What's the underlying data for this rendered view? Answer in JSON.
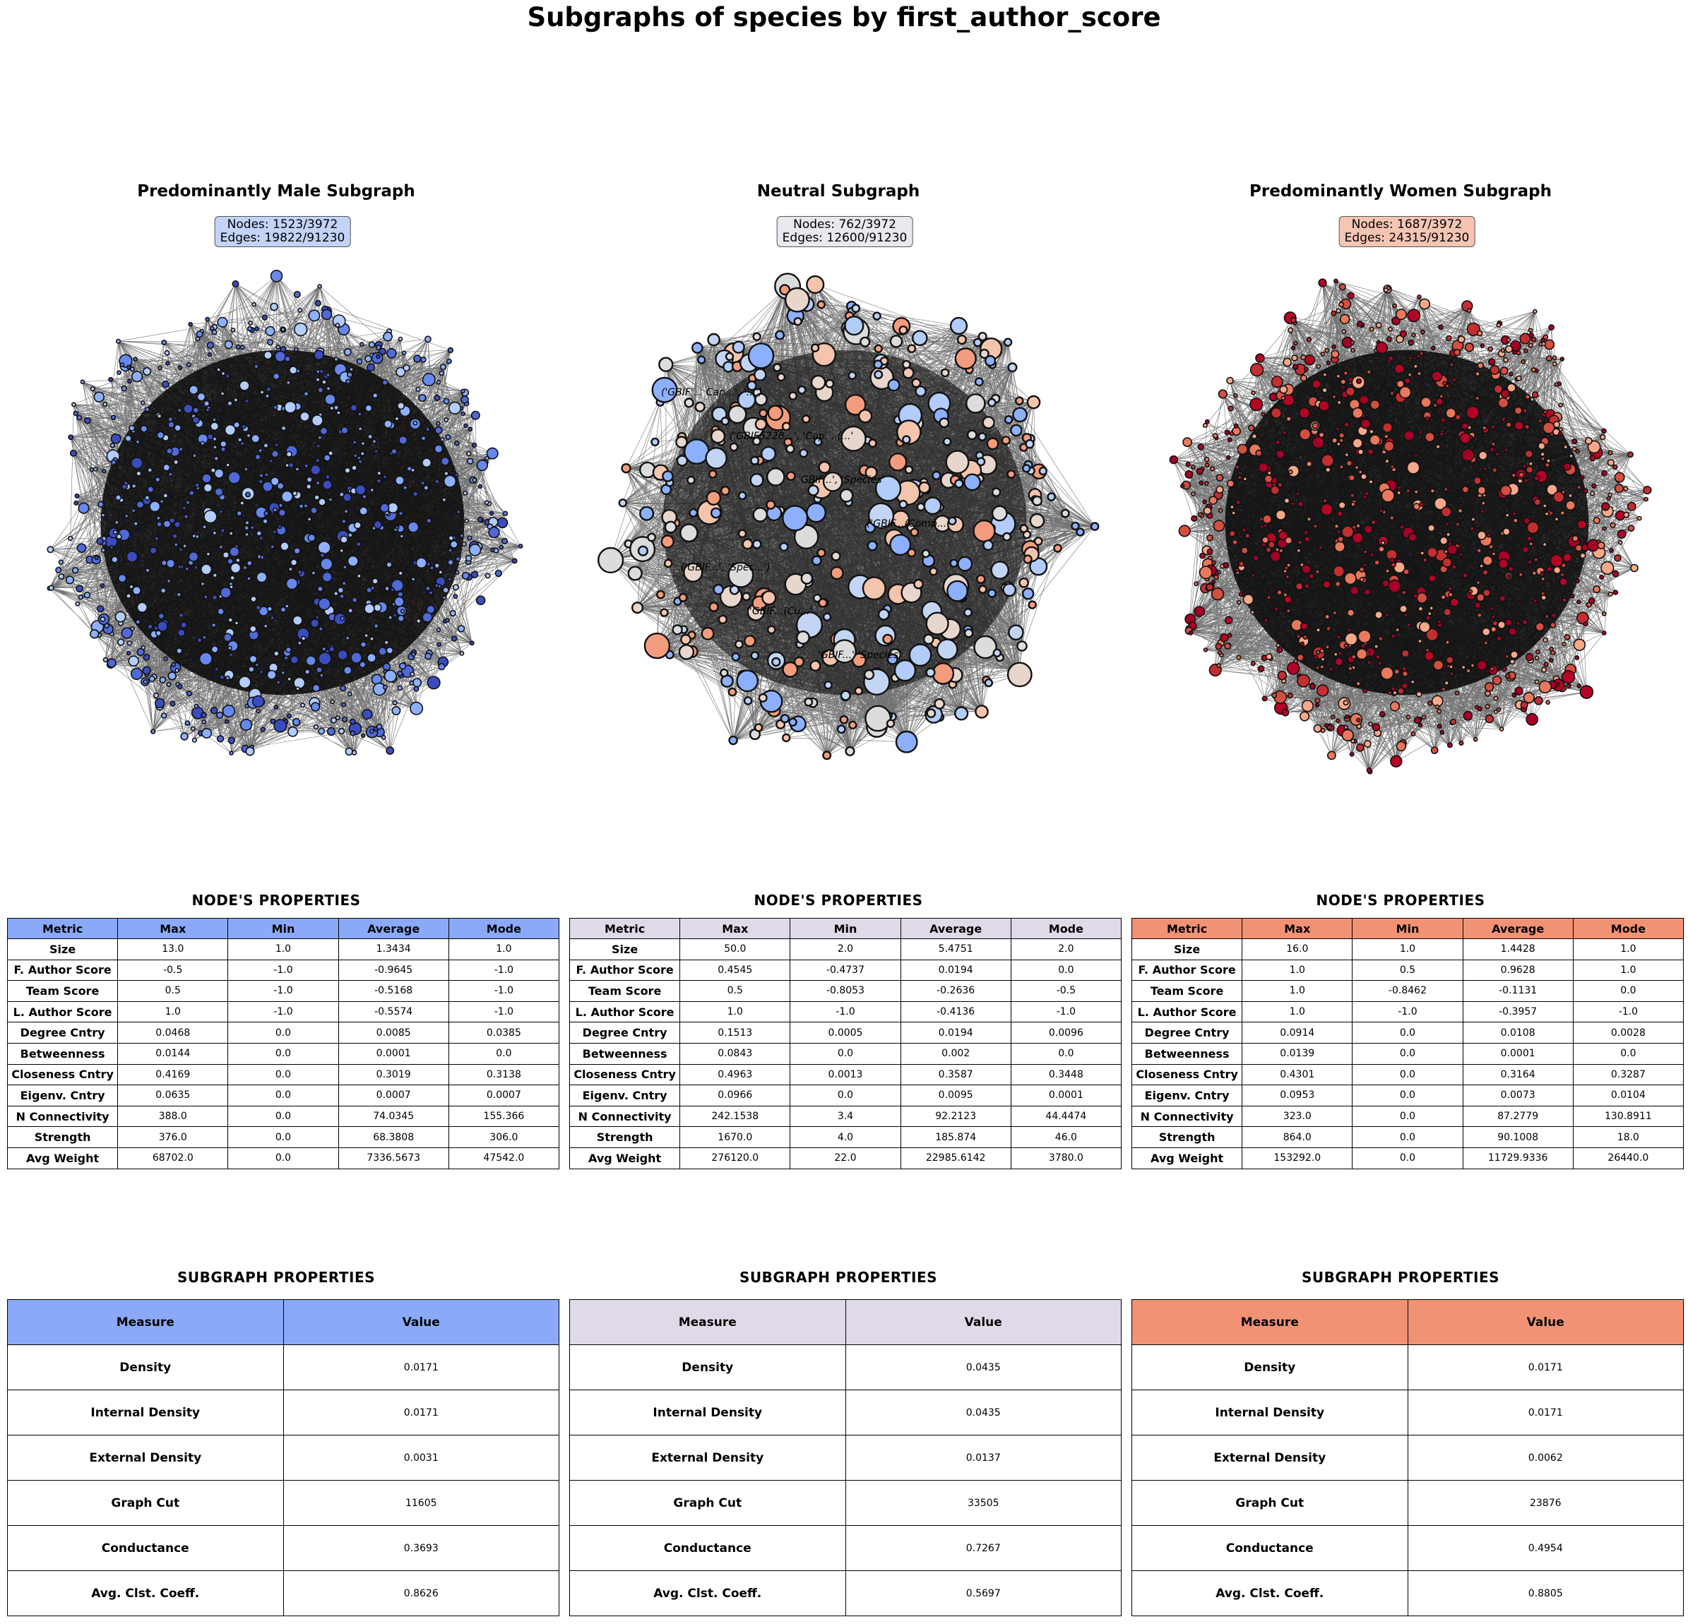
{
  "title": "Subgraphs of species by first_author_score",
  "node_table_title": "NODE'S  PROPERTIES",
  "subgraph_table_title": "SUBGRAPH  PROPERTIES",
  "node_headers": [
    "Metric",
    "Max",
    "Min",
    "Average",
    "Mode"
  ],
  "subgraph_headers": [
    "Measure",
    "Value"
  ],
  "node_metrics": [
    "Size",
    "F. Author Score",
    "Team Score",
    "L. Author Score",
    "Degree Cntry",
    "Betweenness",
    "Closeness Cntry",
    "Eigenv. Cntry",
    "N Connectivity",
    "Strength",
    "Avg Weight"
  ],
  "subgraph_measures": [
    "Density",
    "Internal Density",
    "External Density",
    "Graph Cut",
    "Conductance",
    "Avg. Clst. Coeff."
  ],
  "panels": [
    {
      "title": "Predominantly Male Subgraph",
      "nodes_text": "Nodes: 1523/3972",
      "edges_text": "Edges: 19822/91230",
      "header_color": "#8aa9f8",
      "box_color": "#c3d3f7",
      "node_rows": [
        [
          "13.0",
          "1.0",
          "1.3434",
          "1.0"
        ],
        [
          "-0.5",
          "-1.0",
          "-0.9645",
          "-1.0"
        ],
        [
          "0.5",
          "-1.0",
          "-0.5168",
          "-1.0"
        ],
        [
          "1.0",
          "-1.0",
          "-0.5574",
          "-1.0"
        ],
        [
          "0.0468",
          "0.0",
          "0.0085",
          "0.0385"
        ],
        [
          "0.0144",
          "0.0",
          "0.0001",
          "0.0"
        ],
        [
          "0.4169",
          "0.0",
          "0.3019",
          "0.3138"
        ],
        [
          "0.0635",
          "0.0",
          "0.0007",
          "0.0007"
        ],
        [
          "388.0",
          "0.0",
          "74.0345",
          "155.366"
        ],
        [
          "376.0",
          "0.0",
          "68.3808",
          "306.0"
        ],
        [
          "68702.0",
          "0.0",
          "7336.5673",
          "47542.0"
        ]
      ],
      "subgraph_values": [
        "0.0171",
        "0.0171",
        "0.0031",
        "11605",
        "0.3693",
        "0.8626"
      ],
      "network": {
        "node_count": 900,
        "edge_count": 2400,
        "node_colors": [
          "#3b4cc0",
          "#4f69d9",
          "#6788ee",
          "#8db0fe",
          "#b2ccfb"
        ],
        "min_radius": 2.5,
        "max_radius": 9,
        "halo": false
      },
      "labels": []
    },
    {
      "title": "Neutral Subgraph",
      "nodes_text": "Nodes: 762/3972",
      "edges_text": "Edges: 12600/91230",
      "header_color": "#e0d9e7",
      "box_color": "#eae7ef",
      "node_rows": [
        [
          "50.0",
          "2.0",
          "5.4751",
          "2.0"
        ],
        [
          "0.4545",
          "-0.4737",
          "0.0194",
          "0.0"
        ],
        [
          "0.5",
          "-0.8053",
          "-0.2636",
          "-0.5"
        ],
        [
          "1.0",
          "-1.0",
          "-0.4136",
          "-1.0"
        ],
        [
          "0.1513",
          "0.0005",
          "0.0194",
          "0.0096"
        ],
        [
          "0.0843",
          "0.0",
          "0.002",
          "0.0"
        ],
        [
          "0.4963",
          "0.0013",
          "0.3587",
          "0.3448"
        ],
        [
          "0.0966",
          "0.0",
          "0.0095",
          "0.0001"
        ],
        [
          "242.1538",
          "3.4",
          "92.2123",
          "44.4474"
        ],
        [
          "1670.0",
          "4.0",
          "185.874",
          "46.0"
        ],
        [
          "276120.0",
          "22.0",
          "22985.6142",
          "3780.0"
        ]
      ],
      "subgraph_values": [
        "0.0435",
        "0.0435",
        "0.0137",
        "33505",
        "0.7267",
        "0.5697"
      ],
      "network": {
        "node_count": 430,
        "edge_count": 2600,
        "node_colors": [
          "#8db0fe",
          "#b2ccfb",
          "#dddcdc",
          "#f5c4ac",
          "#f39c7d",
          "#c3d5f4",
          "#e8d6cc"
        ],
        "min_radius": 5,
        "max_radius": 18,
        "halo": true
      },
      "labels": [
        "('GBIF'... Cap...', '...')",
        "('GBIF5228...', 'Cap... (...'",
        "'GBIF...', 'Species'",
        "('GBIF...(Comp...",
        "('GBIF...', 'Spec...')",
        "'GBIF...(Cu...'",
        "'GBIF...' 'Species'"
      ]
    },
    {
      "title": "Predominantly Women Subgraph",
      "nodes_text": "Nodes: 1687/3972",
      "edges_text": "Edges: 24315/91230",
      "header_color": "#f29274",
      "box_color": "#f5c4b3",
      "node_rows": [
        [
          "16.0",
          "1.0",
          "1.4428",
          "1.0"
        ],
        [
          "1.0",
          "0.5",
          "0.9628",
          "1.0"
        ],
        [
          "1.0",
          "-0.8462",
          "-0.1131",
          "0.0"
        ],
        [
          "1.0",
          "-1.0",
          "-0.3957",
          "-1.0"
        ],
        [
          "0.0914",
          "0.0",
          "0.0108",
          "0.0028"
        ],
        [
          "0.0139",
          "0.0",
          "0.0001",
          "0.0"
        ],
        [
          "0.4301",
          "0.0",
          "0.3164",
          "0.3287"
        ],
        [
          "0.0953",
          "0.0",
          "0.0073",
          "0.0104"
        ],
        [
          "323.0",
          "0.0",
          "87.2779",
          "130.8911"
        ],
        [
          "864.0",
          "0.0",
          "90.1008",
          "18.0"
        ],
        [
          "153292.0",
          "0.0",
          "11729.9336",
          "26440.0"
        ]
      ],
      "subgraph_values": [
        "0.0171",
        "0.0171",
        "0.0062",
        "23876",
        "0.4954",
        "0.8805"
      ],
      "network": {
        "node_count": 1000,
        "edge_count": 2600,
        "node_colors": [
          "#b40426",
          "#c32e31",
          "#d44e41",
          "#e9785d",
          "#f7a889",
          "#a50026"
        ],
        "min_radius": 2.5,
        "max_radius": 9,
        "halo": false
      },
      "labels": []
    }
  ]
}
